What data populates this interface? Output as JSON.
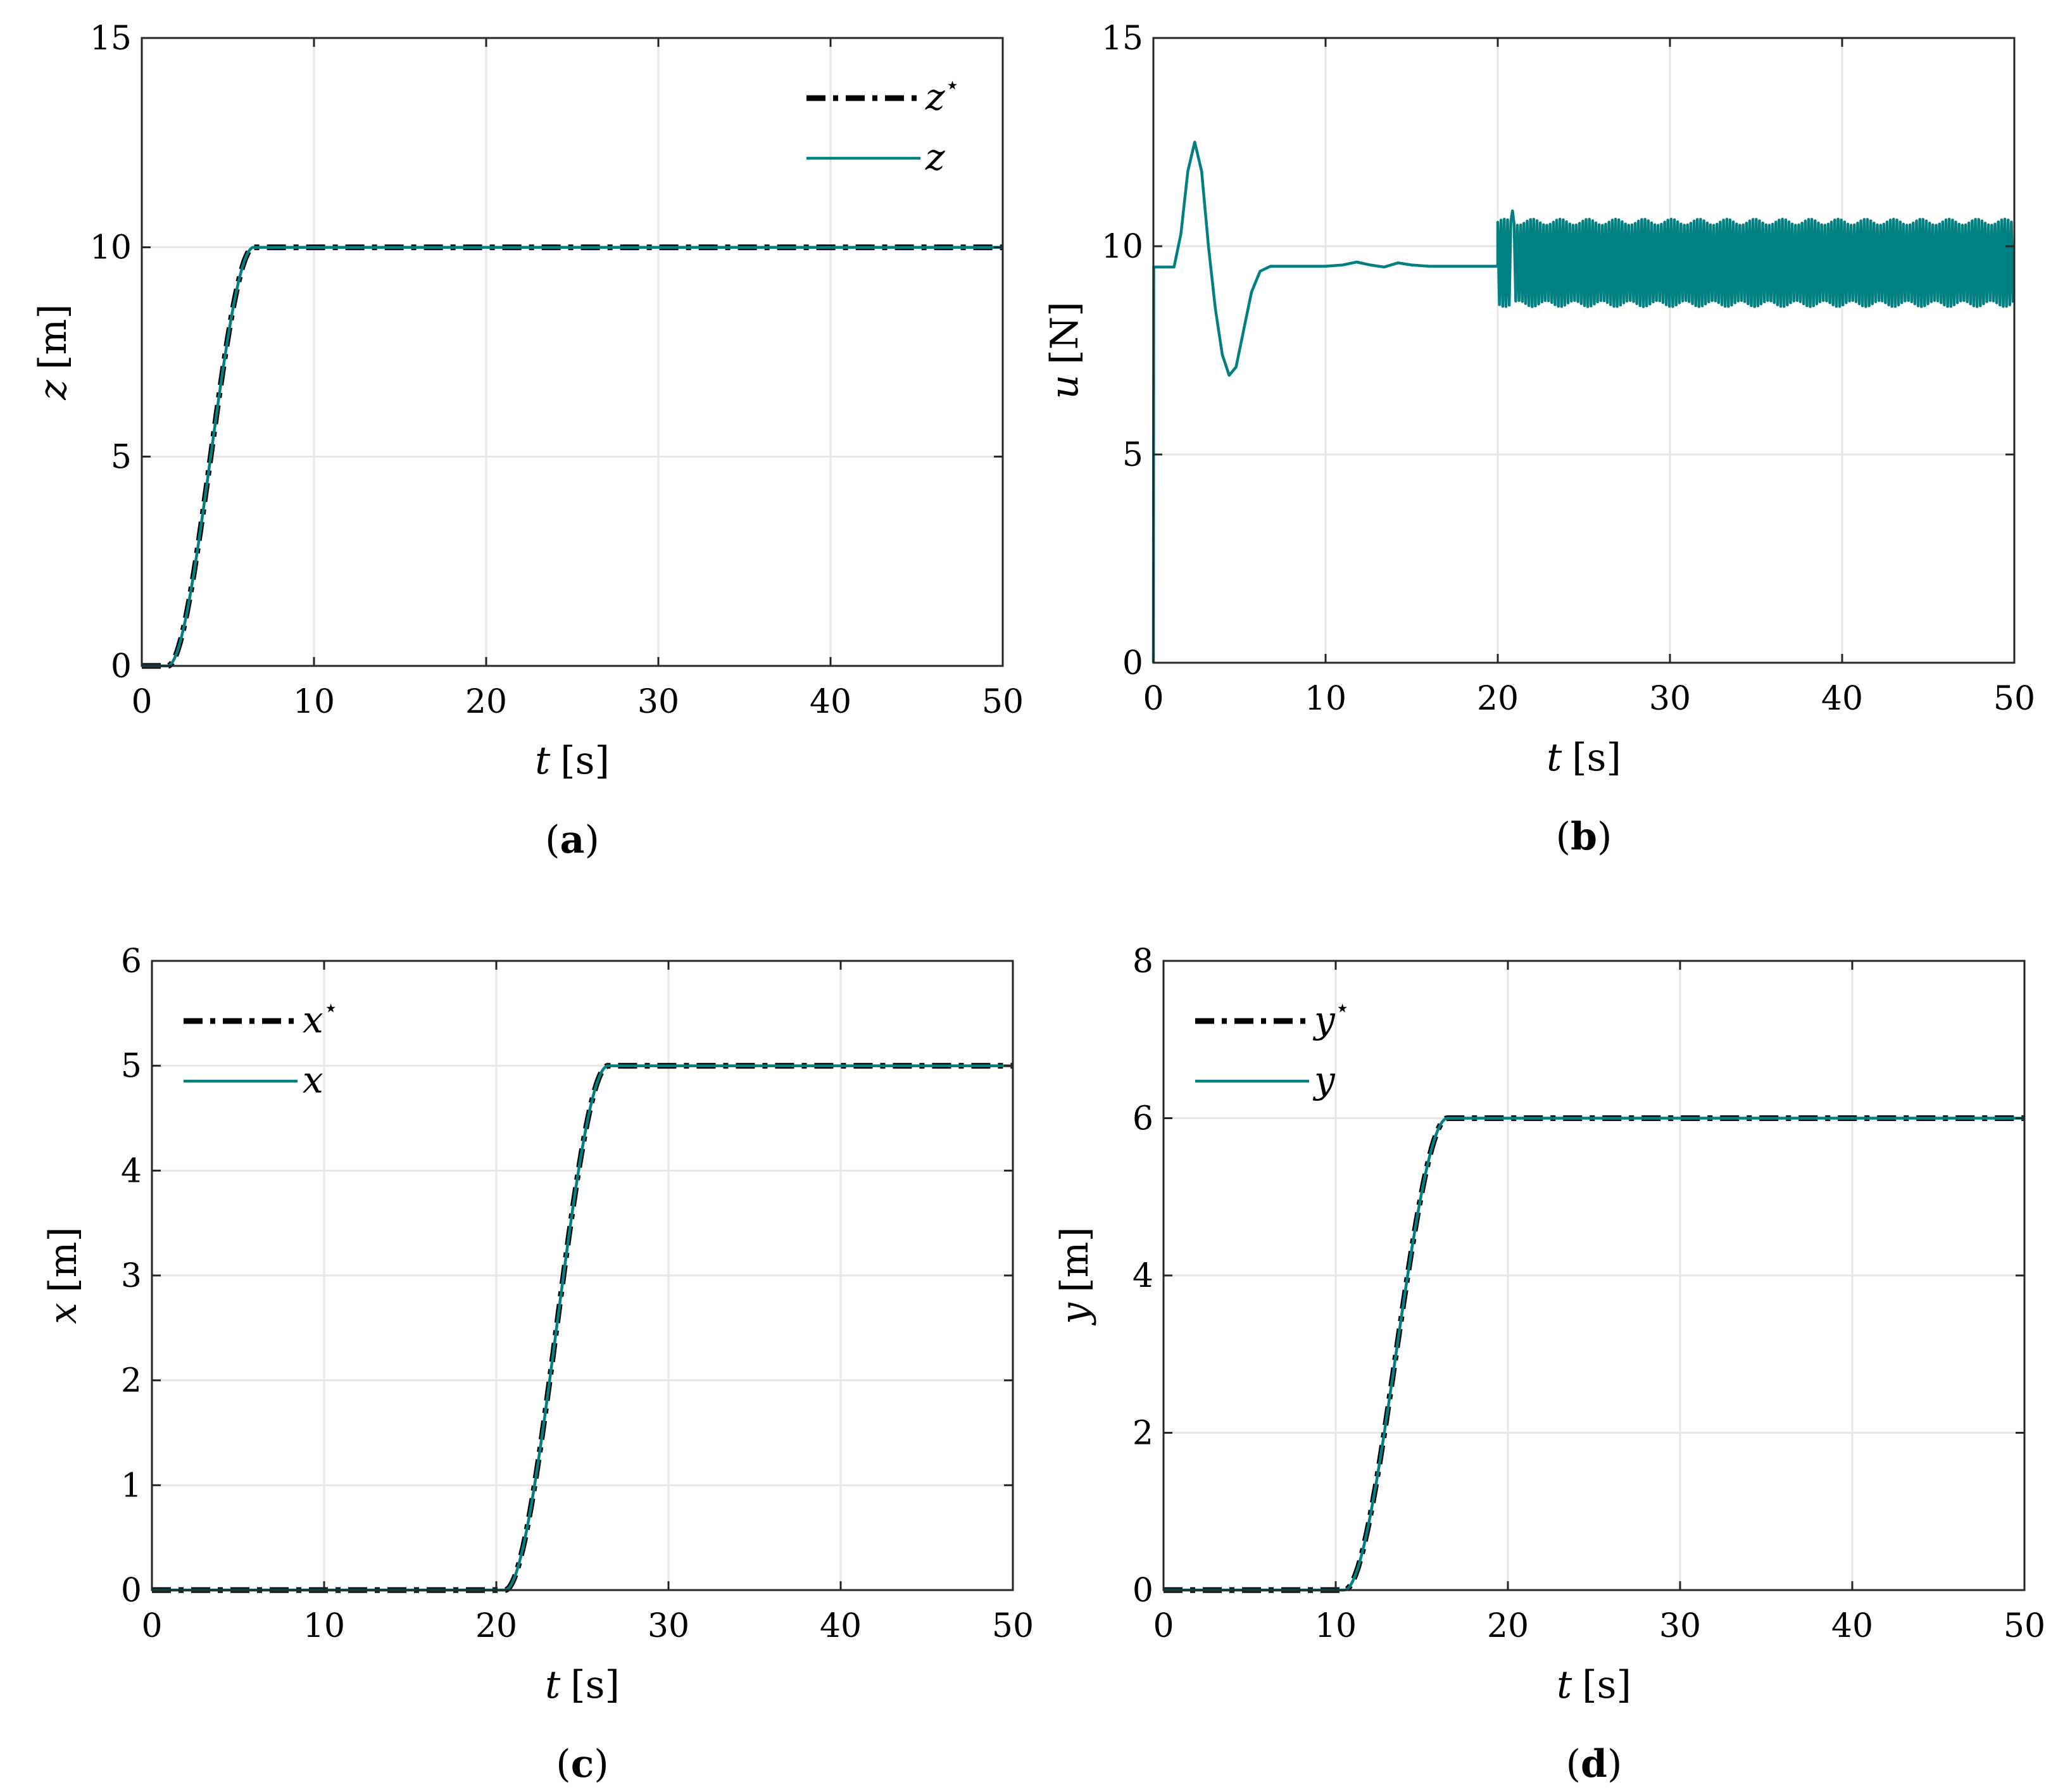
{
  "colors": {
    "reference": "#000000",
    "actual": "#008080",
    "grid": "#e6e6e6",
    "frame": "#262626"
  },
  "chart_data": [
    {
      "id": "a",
      "type": "line",
      "caption": "a",
      "xlabel_var": "t",
      "xlabel_unit": "[s]",
      "ylabel_var": "z",
      "ylabel_unit": "[m]",
      "xlim": [
        0,
        50
      ],
      "ylim": [
        0,
        15
      ],
      "xticks": [
        0,
        10,
        20,
        30,
        40,
        50
      ],
      "yticks": [
        0,
        5,
        10,
        15
      ],
      "grid": true,
      "legend_position": "top-right",
      "series": [
        {
          "name": "z*",
          "legend_base": "z",
          "legend_sup": "⋆",
          "style": "dashdot",
          "color": "#000000",
          "shape": "sigmoid",
          "initial": 0,
          "final": 10,
          "t_start": 1.5,
          "t_end": 6.5
        },
        {
          "name": "z",
          "legend_base": "z",
          "legend_sup": "",
          "style": "solid",
          "color": "#008080",
          "shape": "sigmoid",
          "initial": 0,
          "final": 10,
          "t_start": 1.5,
          "t_end": 6.5
        }
      ]
    },
    {
      "id": "b",
      "type": "line",
      "caption": "b",
      "xlabel_var": "t",
      "xlabel_unit": "[s]",
      "ylabel_var": "u",
      "ylabel_unit": "[N]",
      "xlim": [
        0,
        50
      ],
      "ylim": [
        0,
        15
      ],
      "xticks": [
        0,
        10,
        20,
        30,
        40,
        50
      ],
      "yticks": [
        0,
        5,
        10,
        15
      ],
      "grid": true,
      "legend_position": "none",
      "series": [
        {
          "name": "u",
          "style": "solid",
          "color": "#008080",
          "shape": "control_input",
          "points": [
            [
              0,
              0
            ],
            [
              0.02,
              9.5
            ],
            [
              1.2,
              9.5
            ],
            [
              1.6,
              10.3
            ],
            [
              2.0,
              11.8
            ],
            [
              2.4,
              12.5
            ],
            [
              2.8,
              11.8
            ],
            [
              3.2,
              10.0
            ],
            [
              3.6,
              8.5
            ],
            [
              4.0,
              7.4
            ],
            [
              4.4,
              6.9
            ],
            [
              4.8,
              7.1
            ],
            [
              5.2,
              7.9
            ],
            [
              5.7,
              8.9
            ],
            [
              6.2,
              9.4
            ],
            [
              6.8,
              9.52
            ],
            [
              10.0,
              9.52
            ],
            [
              11.0,
              9.55
            ],
            [
              11.8,
              9.62
            ],
            [
              12.6,
              9.55
            ],
            [
              13.4,
              9.5
            ],
            [
              14.2,
              9.6
            ],
            [
              15.0,
              9.55
            ],
            [
              16.0,
              9.52
            ],
            [
              20.0,
              9.52
            ]
          ],
          "oscillation": {
            "t_from": 20,
            "t_to": 50,
            "mean": 9.6,
            "min": 8.5,
            "max": 10.6,
            "peak": 10.85
          }
        }
      ]
    },
    {
      "id": "c",
      "type": "line",
      "caption": "c",
      "xlabel_var": "t",
      "xlabel_unit": "[s]",
      "ylabel_var": "x",
      "ylabel_unit": "[m]",
      "xlim": [
        0,
        50
      ],
      "ylim": [
        0,
        6
      ],
      "xticks": [
        0,
        10,
        20,
        30,
        40,
        50
      ],
      "yticks": [
        0,
        1,
        2,
        3,
        4,
        5,
        6
      ],
      "grid": true,
      "legend_position": "top-left",
      "series": [
        {
          "name": "x*",
          "legend_base": "x",
          "legend_sup": "⋆",
          "style": "dashdot",
          "color": "#000000",
          "shape": "sigmoid",
          "initial": 0,
          "final": 5,
          "t_start": 20.5,
          "t_end": 26.5
        },
        {
          "name": "x",
          "legend_base": "x",
          "legend_sup": "",
          "style": "solid",
          "color": "#008080",
          "shape": "sigmoid",
          "initial": 0,
          "final": 5,
          "t_start": 20.5,
          "t_end": 26.5
        }
      ]
    },
    {
      "id": "d",
      "type": "line",
      "caption": "d",
      "xlabel_var": "t",
      "xlabel_unit": "[s]",
      "ylabel_var": "y",
      "ylabel_unit": "[m]",
      "xlim": [
        0,
        50
      ],
      "ylim": [
        0,
        8
      ],
      "xticks": [
        0,
        10,
        20,
        30,
        40,
        50
      ],
      "yticks": [
        0,
        2,
        4,
        6,
        8
      ],
      "grid": true,
      "legend_position": "top-left",
      "series": [
        {
          "name": "y*",
          "legend_base": "y",
          "legend_sup": "⋆",
          "style": "dashdot",
          "color": "#000000",
          "shape": "sigmoid",
          "initial": 0,
          "final": 6,
          "t_start": 10.5,
          "t_end": 16.5
        },
        {
          "name": "y",
          "legend_base": "y",
          "legend_sup": "",
          "style": "solid",
          "color": "#008080",
          "shape": "sigmoid",
          "initial": 0,
          "final": 6,
          "t_start": 10.5,
          "t_end": 16.5
        }
      ]
    }
  ]
}
